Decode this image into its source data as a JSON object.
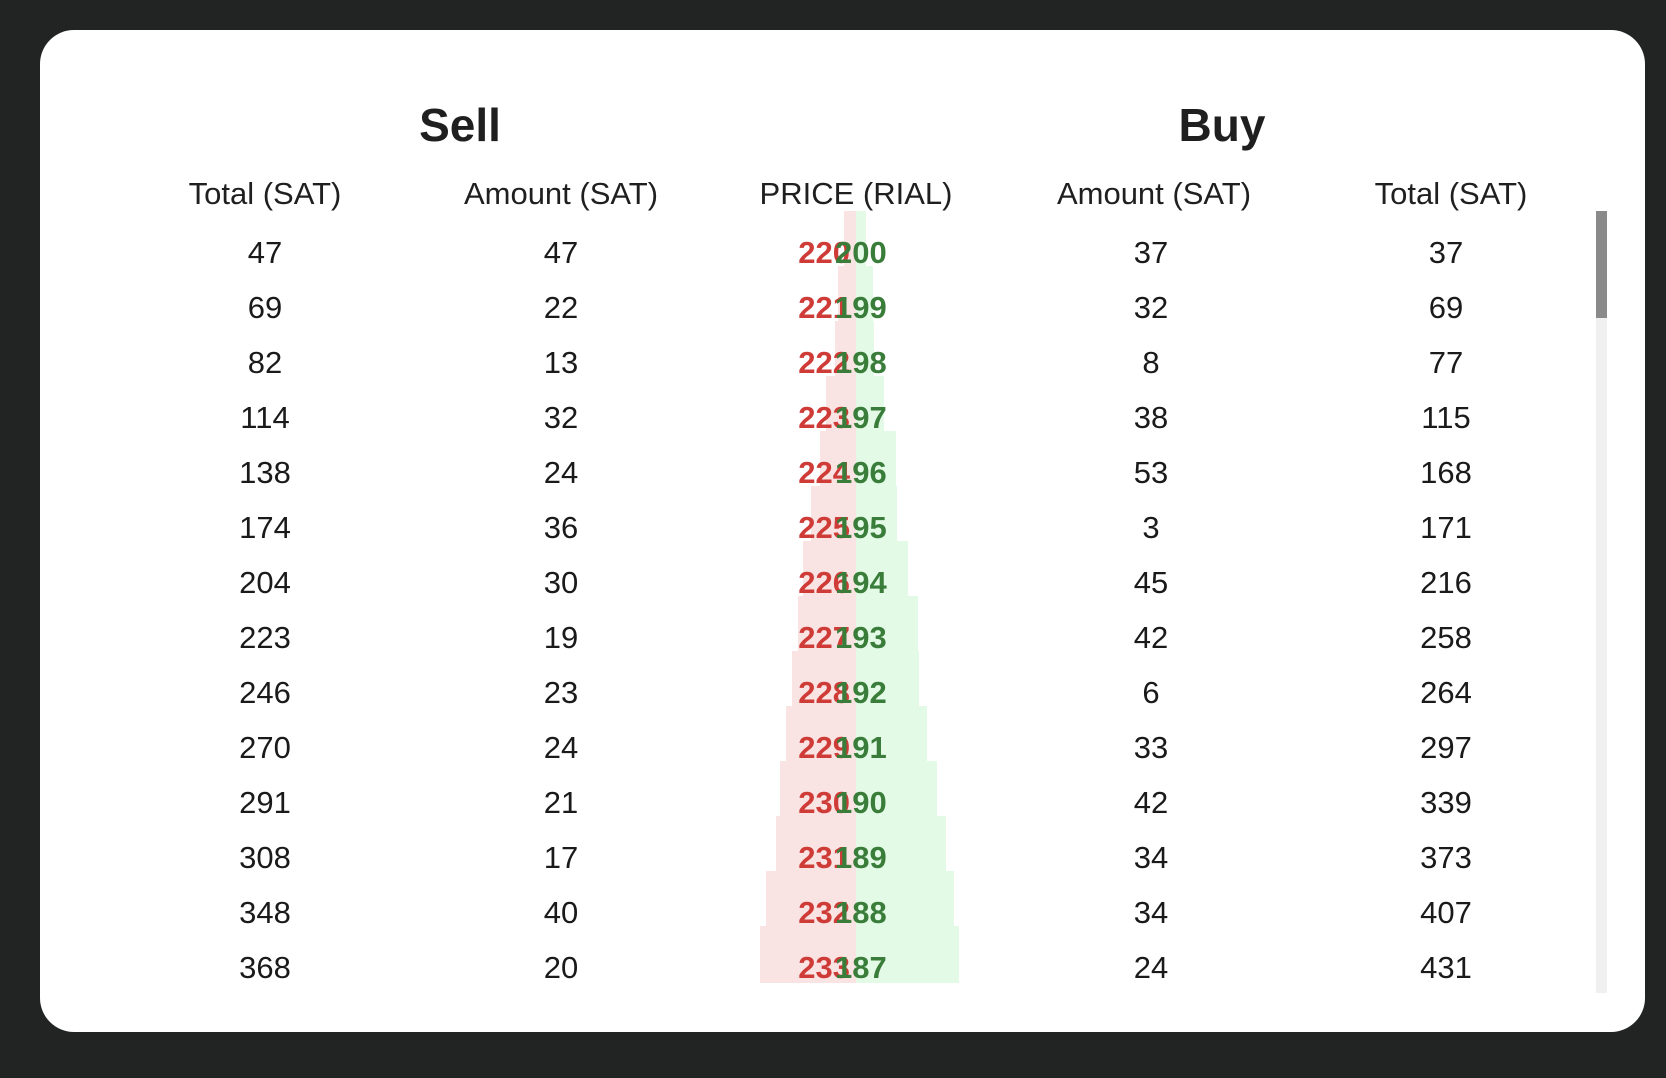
{
  "headings": {
    "sell": "Sell",
    "buy": "Buy"
  },
  "columns": {
    "sell_total": "Total (SAT)",
    "sell_amount": "Amount (SAT)",
    "price": "PRICE (RIAL)",
    "buy_amount": "Amount (SAT)",
    "buy_total": "Total (SAT)"
  },
  "colors": {
    "sell_price": "#cf3b37",
    "buy_price": "#3a7d3a",
    "sell_depth": "#f9e3e3",
    "buy_depth": "#e3fbe6"
  },
  "rows": [
    {
      "sell_total": "47",
      "sell_amount": "47",
      "sell_price": "220",
      "buy_price": "200",
      "buy_amount": "37",
      "buy_total": "37"
    },
    {
      "sell_total": "69",
      "sell_amount": "22",
      "sell_price": "221",
      "buy_price": "199",
      "buy_amount": "32",
      "buy_total": "69"
    },
    {
      "sell_total": "82",
      "sell_amount": "13",
      "sell_price": "222",
      "buy_price": "198",
      "buy_amount": "8",
      "buy_total": "77"
    },
    {
      "sell_total": "114",
      "sell_amount": "32",
      "sell_price": "223",
      "buy_price": "197",
      "buy_amount": "38",
      "buy_total": "115"
    },
    {
      "sell_total": "138",
      "sell_amount": "24",
      "sell_price": "224",
      "buy_price": "196",
      "buy_amount": "53",
      "buy_total": "168"
    },
    {
      "sell_total": "174",
      "sell_amount": "36",
      "sell_price": "225",
      "buy_price": "195",
      "buy_amount": "3",
      "buy_total": "171"
    },
    {
      "sell_total": "204",
      "sell_amount": "30",
      "sell_price": "226",
      "buy_price": "194",
      "buy_amount": "45",
      "buy_total": "216"
    },
    {
      "sell_total": "223",
      "sell_amount": "19",
      "sell_price": "227",
      "buy_price": "193",
      "buy_amount": "42",
      "buy_total": "258"
    },
    {
      "sell_total": "246",
      "sell_amount": "23",
      "sell_price": "228",
      "buy_price": "192",
      "buy_amount": "6",
      "buy_total": "264"
    },
    {
      "sell_total": "270",
      "sell_amount": "24",
      "sell_price": "229",
      "buy_price": "191",
      "buy_amount": "33",
      "buy_total": "297"
    },
    {
      "sell_total": "291",
      "sell_amount": "21",
      "sell_price": "230",
      "buy_price": "190",
      "buy_amount": "42",
      "buy_total": "339"
    },
    {
      "sell_total": "308",
      "sell_amount": "17",
      "sell_price": "231",
      "buy_price": "189",
      "buy_amount": "34",
      "buy_total": "373"
    },
    {
      "sell_total": "348",
      "sell_amount": "40",
      "sell_price": "232",
      "buy_price": "188",
      "buy_amount": "34",
      "buy_total": "407"
    },
    {
      "sell_total": "368",
      "sell_amount": "20",
      "sell_price": "233",
      "buy_price": "187",
      "buy_amount": "24",
      "buy_total": "431"
    }
  ]
}
